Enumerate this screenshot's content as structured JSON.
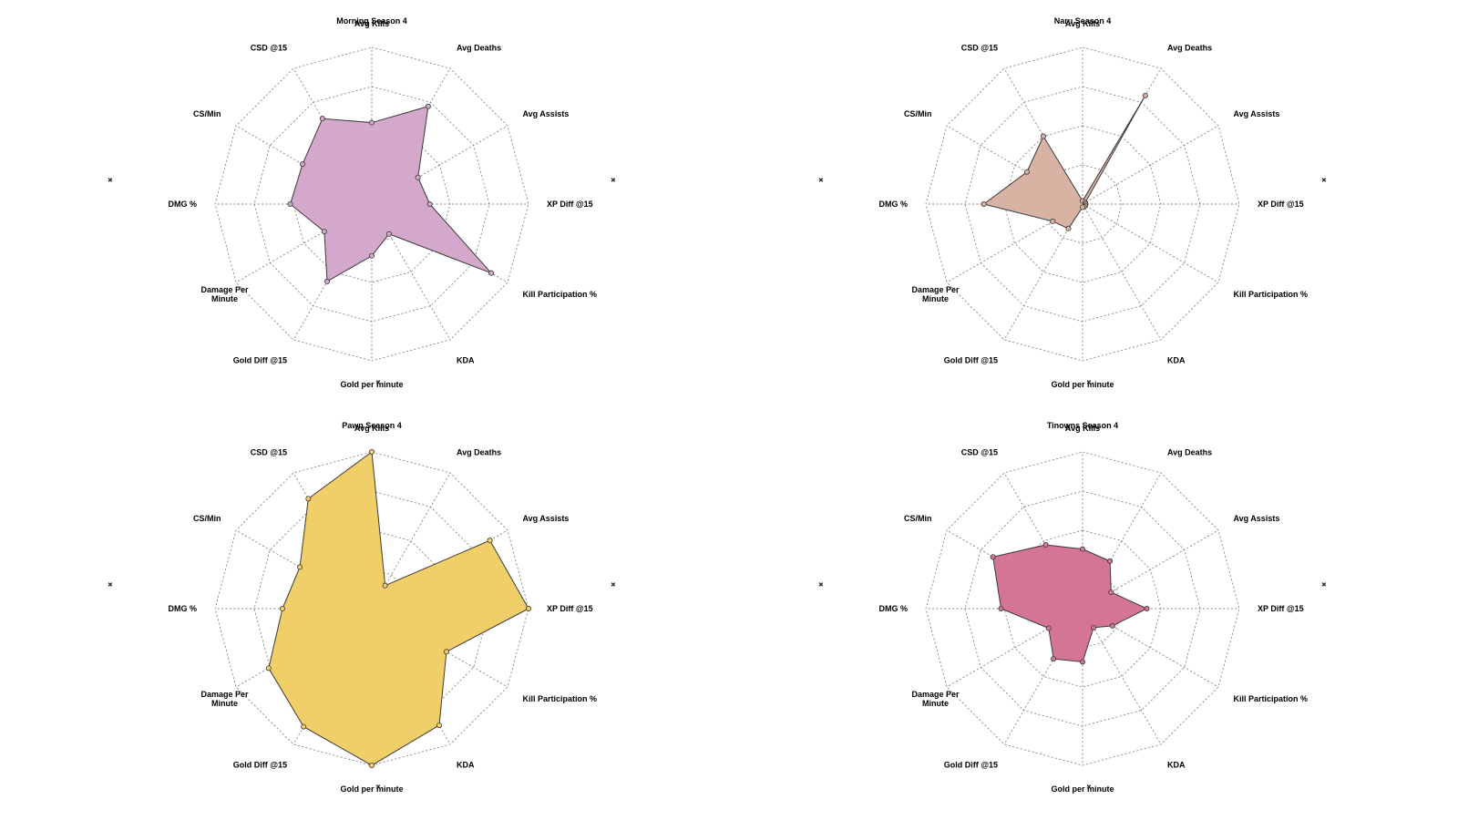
{
  "chart_data": [
    {
      "type": "radar",
      "title": "Morning Season 4",
      "axes": [
        "Avg Kills",
        "Avg Deaths",
        "Avg Assists",
        "XP Diff @15",
        "Kill Participation %",
        "KDA",
        "Gold per minute",
        "Gold Diff @15",
        "Damage Per Minute",
        "DMG %",
        "CS/Min",
        "CSD @15"
      ],
      "values": [
        0.52,
        0.72,
        0.34,
        0.37,
        0.88,
        0.22,
        0.33,
        0.57,
        0.35,
        0.52,
        0.51,
        0.63
      ],
      "range": [
        0,
        1
      ],
      "rings": 4,
      "fill_color": "#d4a8cb"
    },
    {
      "type": "radar",
      "title": "Naru Season 4",
      "axes": [
        "Avg Kills",
        "Avg Deaths",
        "Avg Assists",
        "XP Diff @15",
        "Kill Participation %",
        "KDA",
        "Gold per minute",
        "Gold Diff @15",
        "Damage Per Minute",
        "DMG %",
        "CS/Min",
        "CSD @15"
      ],
      "values": [
        0.02,
        0.8,
        0.02,
        0.02,
        0.02,
        0.02,
        0.02,
        0.18,
        0.22,
        0.63,
        0.41,
        0.5
      ],
      "range": [
        0,
        1
      ],
      "rings": 4,
      "fill_color": "#d8b3a4"
    },
    {
      "type": "radar",
      "title": "Pawn Season 4",
      "axes": [
        "Avg Kills",
        "Avg Deaths",
        "Avg Assists",
        "XP Diff @15",
        "Kill Participation %",
        "KDA",
        "Gold per minute",
        "Gold Diff @15",
        "Damage Per Minute",
        "DMG %",
        "CS/Min",
        "CSD @15"
      ],
      "values": [
        1.0,
        0.17,
        0.87,
        1.0,
        0.55,
        0.86,
        1.0,
        0.87,
        0.76,
        0.57,
        0.53,
        0.81
      ],
      "range": [
        0,
        1
      ],
      "rings": 4,
      "fill_color": "#f0cf68"
    },
    {
      "type": "radar",
      "title": "Tinowns Season 4",
      "axes": [
        "Avg Kills",
        "Avg Deaths",
        "Avg Assists",
        "XP Diff @15",
        "Kill Participation %",
        "KDA",
        "Gold per minute",
        "Gold Diff @15",
        "Damage Per Minute",
        "DMG %",
        "CS/Min",
        "CSD @15"
      ],
      "values": [
        0.38,
        0.35,
        0.21,
        0.41,
        0.22,
        0.14,
        0.34,
        0.37,
        0.25,
        0.52,
        0.66,
        0.47
      ],
      "range": [
        0,
        1
      ],
      "rings": 4,
      "fill_color": "#d57596"
    }
  ]
}
